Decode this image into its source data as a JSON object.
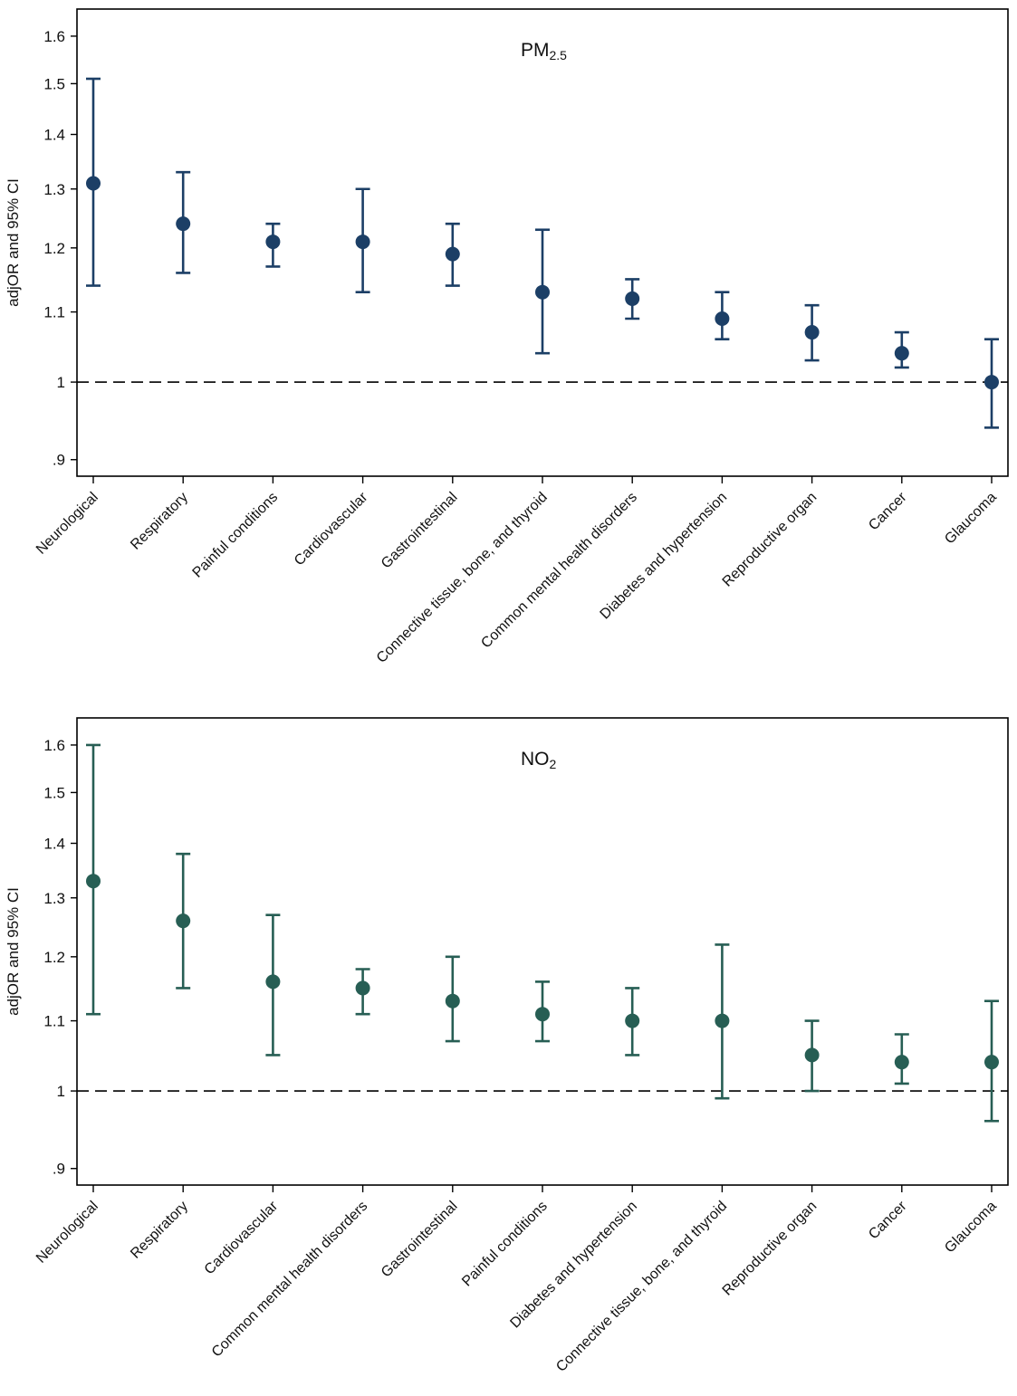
{
  "chart_data": [
    {
      "type": "errorbar",
      "title": "PM",
      "title_subscript": "2.5",
      "xlabel": "",
      "ylabel": "adjOR and 95% CI",
      "y_scale": "log",
      "ylim": [
        0.88,
        1.66
      ],
      "yticks": [
        0.9,
        1,
        1.1,
        1.2,
        1.3,
        1.4,
        1.5,
        1.6
      ],
      "ytick_labels": [
        ".9",
        "1",
        "1.1",
        "1.2",
        "1.3",
        "1.4",
        "1.5",
        "1.6"
      ],
      "reference_line": 1,
      "color": "#1c3f66",
      "categories": [
        "Neurological",
        "Respiratory",
        "Painful conditions",
        "Cardiovascular",
        "Gastrointestinal",
        "Connective tissue, bone, and thyroid",
        "Common mental health disorders",
        "Diabetes and hypertension",
        "Reproductive organ",
        "Cancer",
        "Glaucoma"
      ],
      "values": [
        1.31,
        1.24,
        1.21,
        1.21,
        1.19,
        1.13,
        1.12,
        1.09,
        1.07,
        1.04,
        1.0
      ],
      "lower": [
        1.14,
        1.16,
        1.17,
        1.13,
        1.14,
        1.04,
        1.09,
        1.06,
        1.03,
        1.02,
        0.94
      ],
      "upper": [
        1.51,
        1.33,
        1.24,
        1.3,
        1.24,
        1.23,
        1.15,
        1.13,
        1.11,
        1.07,
        1.06
      ]
    },
    {
      "type": "errorbar",
      "title": "NO",
      "title_subscript": "2",
      "xlabel": "",
      "ylabel": "adjOR and 95% CI",
      "y_scale": "log",
      "ylim": [
        0.88,
        1.66
      ],
      "yticks": [
        0.9,
        1,
        1.1,
        1.2,
        1.3,
        1.4,
        1.5,
        1.6
      ],
      "ytick_labels": [
        ".9",
        "1",
        "1.1",
        "1.2",
        "1.3",
        "1.4",
        "1.5",
        "1.6"
      ],
      "reference_line": 1,
      "color": "#275e54",
      "categories": [
        "Neurological",
        "Respiratory",
        "Cardiovascular",
        "Common mental health disorders",
        "Gastrointestinal",
        "Painful conditions",
        "Diabetes and hypertension",
        "Connective tissue, bone, and thyroid",
        "Reproductive organ",
        "Cancer",
        "Glaucoma"
      ],
      "values": [
        1.33,
        1.26,
        1.16,
        1.15,
        1.13,
        1.11,
        1.1,
        1.1,
        1.05,
        1.04,
        1.04
      ],
      "lower": [
        1.11,
        1.15,
        1.05,
        1.11,
        1.07,
        1.07,
        1.05,
        0.99,
        1.0,
        1.01,
        0.96
      ],
      "upper": [
        1.6,
        1.38,
        1.27,
        1.18,
        1.2,
        1.16,
        1.15,
        1.22,
        1.1,
        1.08,
        1.13
      ]
    }
  ]
}
